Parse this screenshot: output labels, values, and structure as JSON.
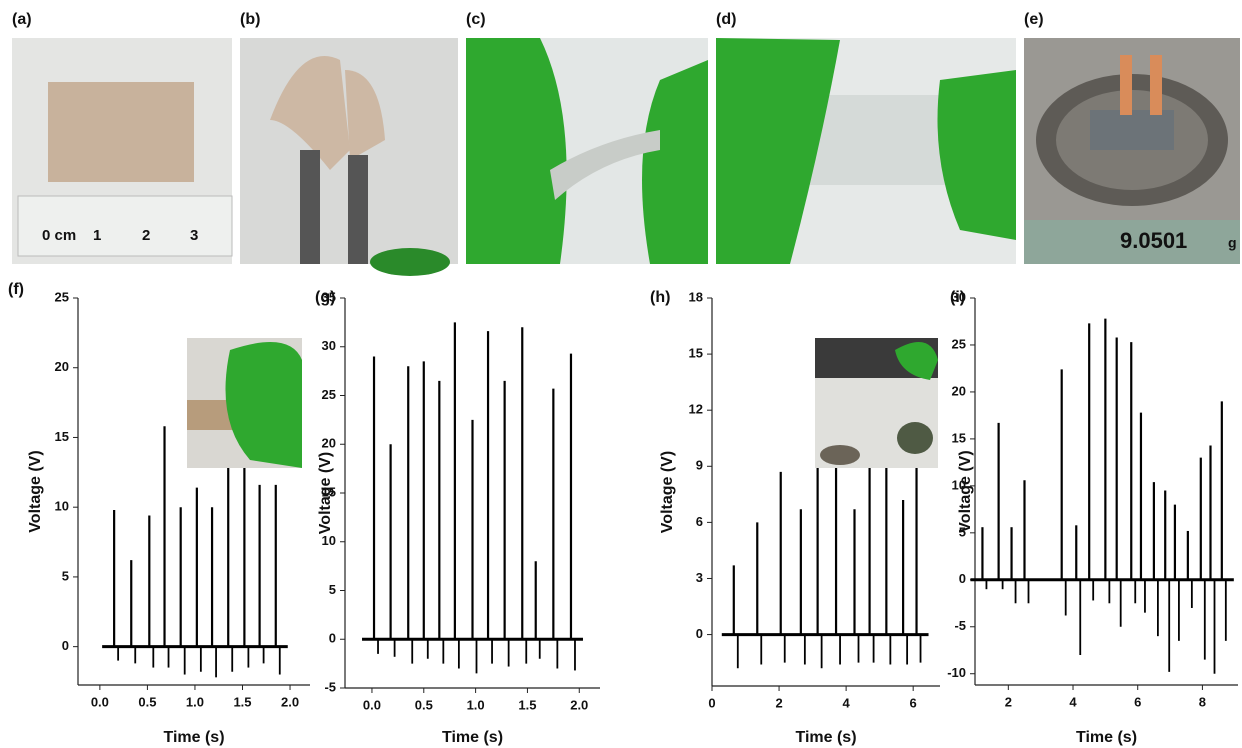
{
  "photos": [
    {
      "label": "(a)",
      "texts": [
        "0 cm",
        "1",
        "2",
        "3"
      ]
    },
    {
      "label": "(b)"
    },
    {
      "label": "(c)"
    },
    {
      "label": "(d)"
    },
    {
      "label": "(e)",
      "texts": [
        "9.0501",
        "g"
      ]
    }
  ],
  "chart_data": [
    {
      "type": "spike",
      "panel_label": "(f)",
      "xlabel": "Time (s)",
      "ylabel": "Voltage (V)",
      "color": "#000000",
      "x": [
        0.15,
        0.33,
        0.52,
        0.68,
        0.85,
        1.02,
        1.18,
        1.35,
        1.52,
        1.68,
        1.85
      ],
      "values": [
        9.8,
        6.2,
        9.4,
        15.8,
        10,
        11.4,
        10,
        13.6,
        14,
        11.6,
        11.6
      ],
      "dips": [
        -1.0,
        -1.2,
        -1.5,
        -1.5,
        -2.0,
        -1.8,
        -2.2,
        -1.8,
        -1.5,
        -1.2,
        -2.0
      ],
      "xlim": [
        -0.23,
        2.21
      ],
      "ylim": [
        -2.75,
        25
      ],
      "xticks": [
        {
          "value": 0,
          "label": "0.0"
        },
        {
          "value": 0.5,
          "label": "0.5"
        },
        {
          "value": 1,
          "label": "1.0"
        },
        {
          "value": 1.5,
          "label": "1.5"
        },
        {
          "value": 2,
          "label": "2.0"
        }
      ],
      "yticks": [
        0,
        5,
        10,
        15,
        20,
        25
      ]
    },
    {
      "type": "spike",
      "panel_label": "(g)",
      "xlabel": "Time (s)",
      "ylabel": "Voltage (V)",
      "color": "#000000",
      "x": [
        0.02,
        0.18,
        0.35,
        0.5,
        0.65,
        0.8,
        0.97,
        1.12,
        1.28,
        1.45,
        1.58,
        1.75,
        1.92
      ],
      "values": [
        29,
        20,
        28,
        28.5,
        26.5,
        32.5,
        22.5,
        31.6,
        26.5,
        32,
        8,
        25.7,
        29.3
      ],
      "dips": [
        -1.5,
        -1.8,
        -2.5,
        -2.0,
        -2.5,
        -3.0,
        -3.5,
        -2.5,
        -2.8,
        -2.5,
        -2.0,
        -3.0,
        -3.2
      ],
      "xlim": [
        -0.26,
        2.2
      ],
      "ylim": [
        -5,
        35
      ],
      "xticks": [
        {
          "value": 0,
          "label": "0.0"
        },
        {
          "value": 0.5,
          "label": "0.5"
        },
        {
          "value": 1,
          "label": "1.0"
        },
        {
          "value": 1.5,
          "label": "1.5"
        },
        {
          "value": 2,
          "label": "2.0"
        }
      ],
      "yticks": [
        -5,
        0,
        5,
        10,
        15,
        20,
        25,
        30,
        35
      ]
    },
    {
      "type": "spike",
      "panel_label": "(h)",
      "xlabel": "Time (s)",
      "ylabel": "Voltage (V)",
      "color": "#000000",
      "x": [
        0.65,
        1.35,
        2.05,
        2.65,
        3.15,
        3.7,
        4.25,
        4.7,
        5.2,
        5.7,
        6.1
      ],
      "values": [
        3.7,
        6,
        8.7,
        6.7,
        9.5,
        9.3,
        6.7,
        9,
        9,
        7.2,
        9
      ],
      "dips": [
        -1.8,
        -1.6,
        -1.5,
        -1.6,
        -1.8,
        -1.6,
        -1.5,
        -1.5,
        -1.6,
        -1.6,
        -1.5
      ],
      "xlim": [
        0,
        6.8
      ],
      "ylim": [
        -2.75,
        18
      ],
      "xticks": [
        0,
        2,
        4,
        6
      ],
      "yticks": [
        0,
        3,
        6,
        9,
        12,
        15,
        18
      ]
    },
    {
      "type": "spike",
      "panel_label": "(i)",
      "xlabel": "Time (s)",
      "ylabel": "Voltage (V)",
      "color": "#000000",
      "x": [
        1.2,
        1.7,
        2.1,
        2.5,
        3.65,
        4.1,
        4.5,
        5.0,
        5.35,
        5.8,
        6.1,
        6.5,
        6.85,
        7.15,
        7.55,
        7.95,
        8.25,
        8.6
      ],
      "values": [
        5.6,
        16.7,
        5.6,
        10.6,
        22.4,
        5.8,
        27.3,
        27.8,
        25.8,
        25.3,
        17.8,
        10.4,
        9.5,
        8,
        5.2,
        13,
        14.3,
        19
      ],
      "dips": [
        -1,
        -1,
        -2.5,
        -2.5,
        -3.8,
        -8,
        -2.2,
        -2.5,
        -5,
        -2.5,
        -3.5,
        -6,
        -9.8,
        -6.5,
        -3,
        -8.5,
        -10,
        -6.5
      ],
      "xlim": [
        0.97,
        9.1
      ],
      "ylim": [
        -11.2,
        30
      ],
      "xticks": [
        2,
        4,
        6,
        8
      ],
      "yticks": [
        -10,
        -5,
        0,
        5,
        10,
        15,
        20,
        25,
        30
      ]
    }
  ]
}
